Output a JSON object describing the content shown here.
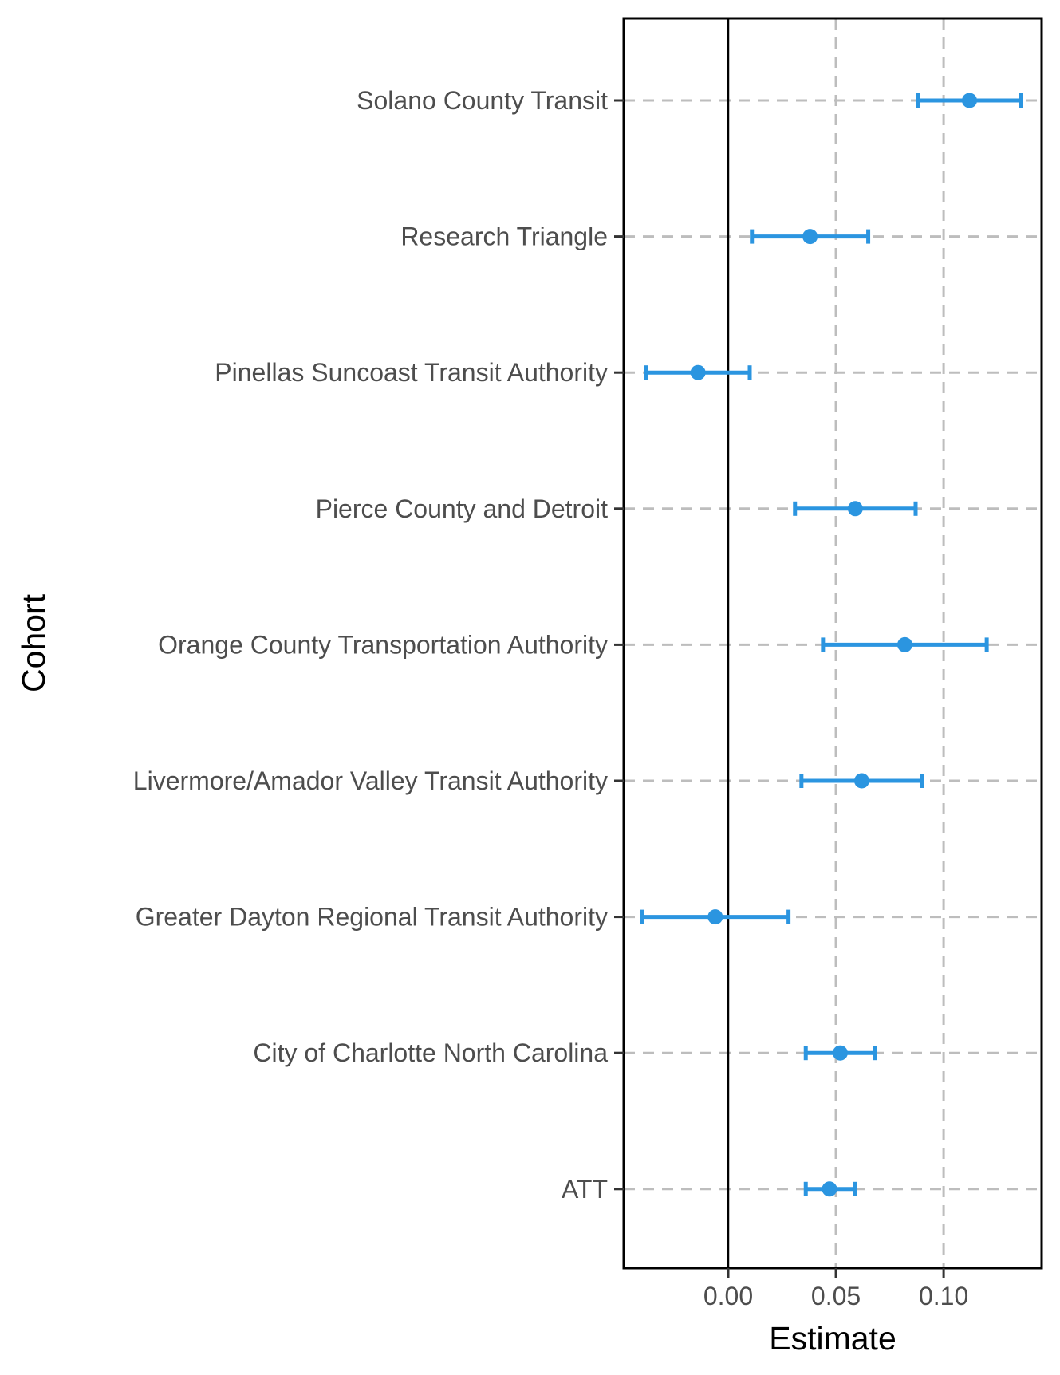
{
  "chart_data": {
    "type": "forest",
    "xlabel": "Estimate",
    "ylabel": "Cohort",
    "xlim": [
      -0.0485,
      0.1455
    ],
    "x_ticks": [
      0.0,
      0.05,
      0.1
    ],
    "x_tick_labels": [
      "0.00",
      "0.05",
      "0.10"
    ],
    "grid": "dashed vertical at x ticks and horizontal at each cohort",
    "reference_line": 0,
    "point_color": "#2b95e0",
    "categories": [
      "Solano County Transit",
      "Research Triangle",
      "Pinellas Suncoast Transit Authority",
      "Pierce County and Detroit",
      "Orange County Transportation Authority",
      "Livermore/Amador Valley Transit Authority",
      "Greater Dayton Regional Transit Authority",
      "City of Charlotte North Carolina",
      "ATT"
    ],
    "estimates": [
      0.112,
      0.038,
      -0.014,
      0.059,
      0.082,
      0.062,
      -0.006,
      0.052,
      0.047
    ],
    "ci_low": [
      0.088,
      0.011,
      -0.038,
      0.031,
      0.044,
      0.034,
      -0.04,
      0.036,
      0.036
    ],
    "ci_high": [
      0.136,
      0.065,
      0.01,
      0.087,
      0.12,
      0.09,
      0.028,
      0.068,
      0.059
    ]
  }
}
